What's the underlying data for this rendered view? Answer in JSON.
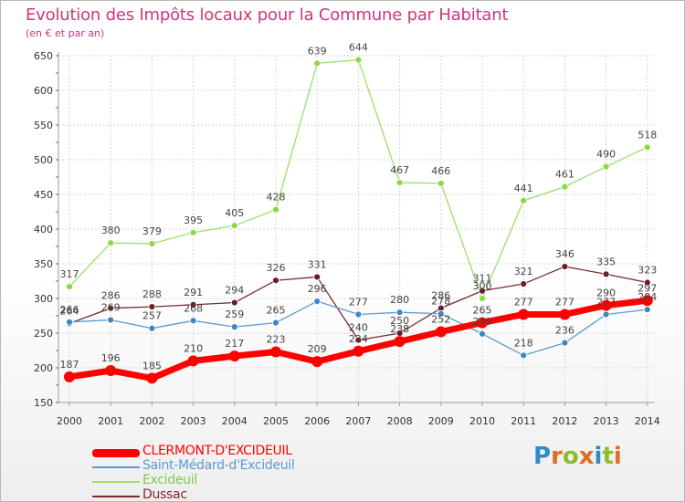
{
  "title": "Evolution des Impôts locaux pour la Commune par Habitant",
  "subtitle": "(en € et par an)",
  "logo": {
    "text": "Proxiti",
    "colors": [
      "#2e8ccb",
      "#e56b25",
      "#8dbd2b",
      "#e56b25",
      "#2e8ccb",
      "#8dbd2b",
      "#e56b25"
    ]
  },
  "chart_data": {
    "type": "line",
    "x": [
      "2000",
      "2001",
      "2002",
      "2003",
      "2004",
      "2005",
      "2006",
      "2007",
      "2008",
      "2009",
      "2010",
      "2011",
      "2012",
      "2013",
      "2014"
    ],
    "ylim": [
      150,
      650
    ],
    "yticks": [
      "650",
      "600",
      "550",
      "500",
      "450",
      "400",
      "350",
      "300",
      "250",
      "200",
      "150"
    ],
    "grid": true,
    "series": [
      {
        "name": "Excideuil",
        "color": "#99e06a",
        "point_color": "#8bd940",
        "width": 1.3,
        "radius": 3.5,
        "values": [
          317,
          380,
          379,
          395,
          405,
          428,
          639,
          644,
          467,
          466,
          300,
          441,
          461,
          490,
          518
        ],
        "labels": [
          "317",
          "380",
          "379",
          "395",
          "405",
          "428",
          "639",
          "644",
          "467",
          "466",
          "300",
          "441",
          "461",
          "490",
          "518"
        ]
      },
      {
        "name": "Dussac",
        "color": "#7a2a30",
        "point_color": "#6b1e24",
        "width": 1.3,
        "radius": 3.5,
        "values": [
          264,
          286,
          288,
          291,
          294,
          326,
          331,
          240,
          250,
          286,
          311,
          321,
          346,
          335,
          323
        ],
        "labels": [
          "264",
          "286",
          "288",
          "291",
          "294",
          "326",
          "331",
          "240",
          "250",
          "286",
          "311",
          "321",
          "346",
          "335",
          "323"
        ]
      },
      {
        "name": "Saint-Médard-d'Excideuil",
        "color": "#5b9bd1",
        "point_color": "#3d86c6",
        "width": 1.3,
        "radius": 3.5,
        "values": [
          266,
          269,
          257,
          268,
          259,
          265,
          296,
          277,
          280,
          278,
          249,
          218,
          236,
          277,
          284
        ],
        "labels": [
          "266",
          "269",
          "257",
          "268",
          "259",
          "265",
          "296",
          "277",
          "280",
          "278",
          "249",
          "218",
          "236",
          "277",
          "284"
        ]
      },
      {
        "name": "CLERMONT-D'EXCIDEUIL",
        "color": "#ff0000",
        "point_color": "#ff0000",
        "width": 7,
        "radius": 6,
        "values": [
          187,
          196,
          185,
          210,
          217,
          223,
          209,
          224,
          238,
          252,
          265,
          277,
          277,
          290,
          297
        ],
        "labels": [
          "187",
          "196",
          "185",
          "210",
          "217",
          "223",
          "209",
          "224",
          "238",
          "252",
          "265",
          "277",
          "277",
          "290",
          "297"
        ]
      }
    ]
  },
  "legend": [
    {
      "label": "CLERMONT-D'EXCIDEUIL",
      "color": "#ff0000",
      "thickness": 9
    },
    {
      "label": "Saint-Médard-d'Excideuil",
      "color": "#5b9bd1",
      "thickness": 2
    },
    {
      "label": "Excideuil",
      "color": "#99e06a",
      "thickness": 2
    },
    {
      "label": "Dussac",
      "color": "#7a2a30",
      "thickness": 2
    }
  ]
}
